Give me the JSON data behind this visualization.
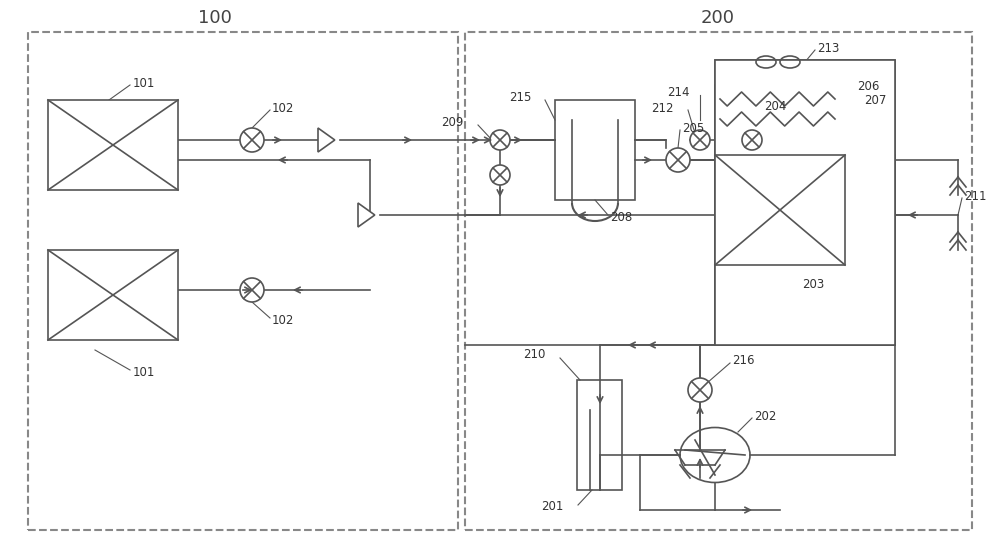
{
  "bg_color": "#ffffff",
  "line_color": "#555555",
  "fig_width": 10.0,
  "fig_height": 5.56
}
